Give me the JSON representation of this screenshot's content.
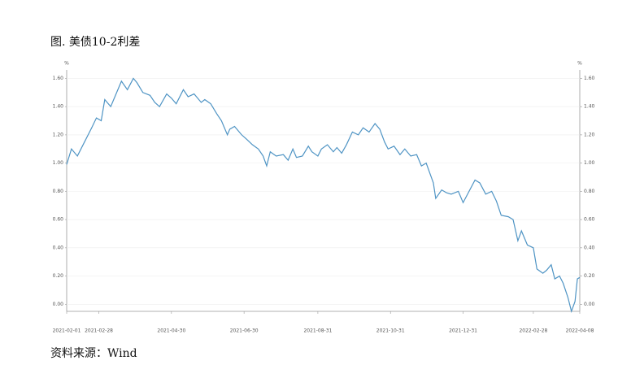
{
  "chart_data": {
    "type": "line",
    "title": "图. 美债10-2利差",
    "source": "资料来源：Wind",
    "y_unit": "%",
    "y2_unit": "%",
    "x": [
      "2021-02-01",
      "2021-02-05",
      "2021-02-10",
      "2021-02-16",
      "2021-02-22",
      "2021-02-26",
      "2021-03-02",
      "2021-03-05",
      "2021-03-10",
      "2021-03-15",
      "2021-03-19",
      "2021-03-24",
      "2021-03-29",
      "2021-04-01",
      "2021-04-06",
      "2021-04-12",
      "2021-04-16",
      "2021-04-20",
      "2021-04-26",
      "2021-04-30",
      "2021-05-04",
      "2021-05-10",
      "2021-05-14",
      "2021-05-19",
      "2021-05-25",
      "2021-05-28",
      "2021-06-02",
      "2021-06-07",
      "2021-06-11",
      "2021-06-16",
      "2021-06-18",
      "2021-06-22",
      "2021-06-28",
      "2021-07-02",
      "2021-07-07",
      "2021-07-12",
      "2021-07-16",
      "2021-07-19",
      "2021-07-22",
      "2021-07-27",
      "2021-08-02",
      "2021-08-06",
      "2021-08-10",
      "2021-08-13",
      "2021-08-18",
      "2021-08-23",
      "2021-08-26",
      "2021-08-31",
      "2021-09-03",
      "2021-09-08",
      "2021-09-13",
      "2021-09-16",
      "2021-09-20",
      "2021-09-24",
      "2021-09-29",
      "2021-10-04",
      "2021-10-08",
      "2021-10-13",
      "2021-10-18",
      "2021-10-22",
      "2021-10-26",
      "2021-10-29",
      "2021-11-03",
      "2021-11-08",
      "2021-11-12",
      "2021-11-17",
      "2021-11-22",
      "2021-11-26",
      "2021-11-30",
      "2021-12-03",
      "2021-12-06",
      "2021-12-08",
      "2021-12-13",
      "2021-12-17",
      "2021-12-21",
      "2021-12-27",
      "2021-12-31",
      "2022-01-05",
      "2022-01-10",
      "2022-01-14",
      "2022-01-19",
      "2022-01-24",
      "2022-01-28",
      "2022-02-01",
      "2022-02-07",
      "2022-02-11",
      "2022-02-15",
      "2022-02-18",
      "2022-02-23",
      "2022-02-28",
      "2022-03-03",
      "2022-03-08",
      "2022-03-11",
      "2022-03-15",
      "2022-03-18",
      "2022-03-22",
      "2022-03-25",
      "2022-03-29",
      "2022-04-01",
      "2022-04-04",
      "2022-04-06",
      "2022-04-08"
    ],
    "series": [
      {
        "color": "#4f94c4",
        "values": [
          0.99,
          1.1,
          1.05,
          1.15,
          1.25,
          1.32,
          1.3,
          1.45,
          1.4,
          1.5,
          1.58,
          1.52,
          1.6,
          1.57,
          1.5,
          1.48,
          1.43,
          1.4,
          1.49,
          1.46,
          1.42,
          1.52,
          1.47,
          1.49,
          1.43,
          1.45,
          1.42,
          1.35,
          1.3,
          1.2,
          1.24,
          1.26,
          1.2,
          1.17,
          1.13,
          1.1,
          1.05,
          0.98,
          1.08,
          1.05,
          1.06,
          1.02,
          1.1,
          1.04,
          1.05,
          1.12,
          1.08,
          1.05,
          1.1,
          1.13,
          1.08,
          1.11,
          1.07,
          1.13,
          1.22,
          1.2,
          1.25,
          1.22,
          1.28,
          1.24,
          1.15,
          1.1,
          1.12,
          1.06,
          1.1,
          1.05,
          1.06,
          0.98,
          1.0,
          0.93,
          0.86,
          0.75,
          0.81,
          0.79,
          0.78,
          0.8,
          0.72,
          0.8,
          0.88,
          0.86,
          0.78,
          0.8,
          0.73,
          0.63,
          0.62,
          0.6,
          0.45,
          0.52,
          0.42,
          0.4,
          0.25,
          0.22,
          0.24,
          0.28,
          0.18,
          0.2,
          0.15,
          0.05,
          -0.05,
          0.02,
          0.18,
          0.19
        ]
      }
    ],
    "xlim": [
      "2021-02-01",
      "2022-04-08"
    ],
    "xticks": [
      "2021-02-01",
      "2021-02-28",
      "2021-04-30",
      "2021-06-30",
      "2021-08-31",
      "2021-10-31",
      "2021-12-31",
      "2022-02-28",
      "2022-04-08"
    ],
    "ylim": [
      -0.05,
      1.66
    ],
    "yticks": [
      {
        "value": 0,
        "label": "0.00"
      },
      {
        "value": 0.2,
        "label": "0.20"
      },
      {
        "value": 0.4,
        "label": "0.40"
      },
      {
        "value": 0.6,
        "label": "0.60"
      },
      {
        "value": 0.8,
        "label": "0.80"
      },
      {
        "value": 1,
        "label": "1.00"
      },
      {
        "value": 1.2,
        "label": "1.20"
      },
      {
        "value": 1.4,
        "label": "1.40"
      },
      {
        "value": 1.6,
        "label": "1.60"
      }
    ],
    "y2lim": [
      -0.05,
      1.66
    ],
    "y2ticks": [
      {
        "value": 0,
        "label": "0.00"
      },
      {
        "value": 0.2,
        "label": "0.20"
      },
      {
        "value": 0.4,
        "label": "0.40"
      },
      {
        "value": 0.6,
        "label": "0.60"
      },
      {
        "value": 0.8,
        "label": "0.80"
      },
      {
        "value": 1,
        "label": "1.00"
      },
      {
        "value": 1.2,
        "label": "1.20"
      },
      {
        "value": 1.4,
        "label": "1.40"
      },
      {
        "value": 1.6,
        "label": "1.60"
      }
    ],
    "grid": true
  }
}
